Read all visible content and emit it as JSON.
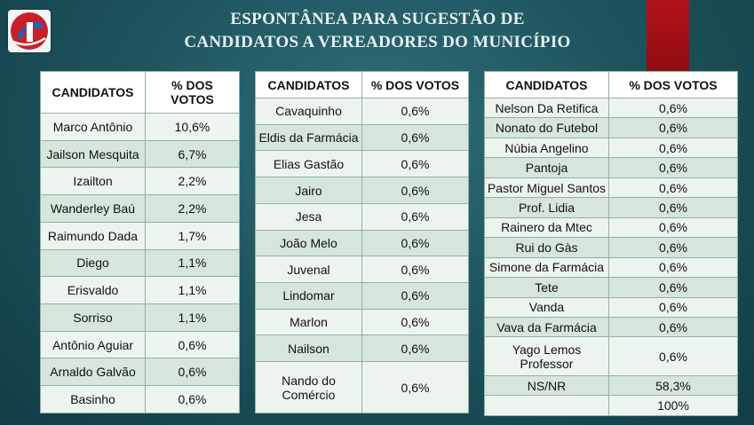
{
  "title_line1": "ESPONTÂNEA PARA SUGESTÃO DE",
  "title_line2": "CANDIDATOS A VEREADORES DO MUNICÍPIO",
  "header": {
    "candidatos": "CANDIDATOS",
    "votos": "% DOS VOTOS",
    "votos_wrapped": "% DOS\nVOTOS"
  },
  "table1": [
    [
      "Marco Antônio",
      "10,6%"
    ],
    [
      "Jailson Mesquita",
      "6,7%"
    ],
    [
      "Izailton",
      "2,2%"
    ],
    [
      "Wanderley Baú",
      "2,2%"
    ],
    [
      "Raimundo Dada",
      "1,7%"
    ],
    [
      "Diego",
      "1,1%"
    ],
    [
      "Erisvaldo",
      "1,1%"
    ],
    [
      "Sorriso",
      "1,1%"
    ],
    [
      "Antônio Aguiar",
      "0,6%"
    ],
    [
      "Arnaldo Galvão",
      "0,6%"
    ],
    [
      "Basinho",
      "0,6%"
    ]
  ],
  "table2": [
    [
      "Cavaquinho",
      "0,6%"
    ],
    [
      "Eldis da Farmácia",
      "0,6%"
    ],
    [
      "Elias Gastão",
      "0,6%"
    ],
    [
      "Jairo",
      "0,6%"
    ],
    [
      "Jesa",
      "0,6%"
    ],
    [
      "João Melo",
      "0,6%"
    ],
    [
      "Juvenal",
      "0,6%"
    ],
    [
      "Lindomar",
      "0,6%"
    ],
    [
      "Marlon",
      "0,6%"
    ],
    [
      "Nailson",
      "0,6%"
    ],
    [
      "Nando do Comércio",
      "0,6%"
    ]
  ],
  "table3": [
    [
      "Nelson Da Retifica",
      "0,6%"
    ],
    [
      "Nonato do Futebol",
      "0,6%"
    ],
    [
      "Núbia Angelino",
      "0,6%"
    ],
    [
      "Pantoja",
      "0,6%"
    ],
    [
      "Pastor Miguel Santos",
      "0,6%"
    ],
    [
      "Prof. Lidia",
      "0,6%"
    ],
    [
      "Rainero da Mtec",
      "0,6%"
    ],
    [
      "Rui do Gàs",
      "0,6%"
    ],
    [
      "Simone da Farmácia",
      "0,6%"
    ],
    [
      "Tete",
      "0,6%"
    ],
    [
      "Vanda",
      "0,6%"
    ],
    [
      "Vava da Farmácia",
      "0,6%"
    ],
    [
      "Yago Lemos Professor",
      "0,6%"
    ],
    [
      "NS/NR",
      "58,3%"
    ],
    [
      "",
      "100%"
    ]
  ]
}
